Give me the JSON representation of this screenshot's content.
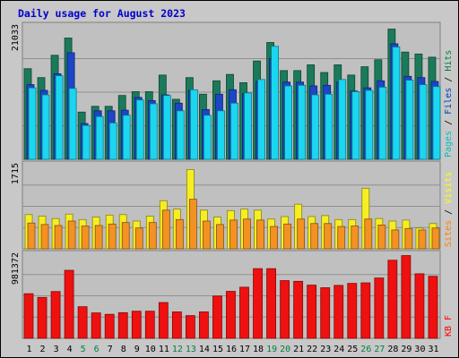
{
  "chart_data": {
    "type": "bar",
    "title": "Daily usage for August 2023",
    "categories": [
      "1",
      "2",
      "3",
      "4",
      "5",
      "6",
      "7",
      "8",
      "9",
      "10",
      "11",
      "12",
      "13",
      "14",
      "15",
      "16",
      "17",
      "18",
      "19",
      "20",
      "21",
      "22",
      "23",
      "24",
      "25",
      "26",
      "27",
      "28",
      "29",
      "30",
      "31"
    ],
    "weekend_days": [
      "5",
      "6",
      "12",
      "13",
      "19",
      "20",
      "26",
      "27"
    ],
    "panels": [
      {
        "id": "hits",
        "ymax": 21033,
        "ymax_label": "21033",
        "ylabel_parts": [
          "Pages",
          "Files",
          "Hits"
        ],
        "ylabel_colors": [
          "#00c0c0",
          "#0040c0",
          "#008040"
        ],
        "series": [
          {
            "name": "Hits",
            "color": "#1b7a5a",
            "values": [
              14200,
              12800,
              16300,
              19000,
              7400,
              8300,
              8300,
              10000,
              10600,
              10600,
              13200,
              9400,
              12800,
              10200,
              12300,
              13300,
              12000,
              15400,
              18300,
              13900,
              13900,
              14800,
              13600,
              14800,
              13200,
              14500,
              15600,
              20400,
              16800,
              16500,
              16000
            ]
          },
          {
            "name": "Files",
            "color": "#1c45c8",
            "values": [
              11700,
              10800,
              13400,
              16700,
              5600,
              7600,
              7600,
              7700,
              9700,
              9200,
              10100,
              8800,
              10800,
              7800,
              10200,
              10900,
              10300,
              12200,
              15800,
              12100,
              12100,
              11500,
              11600,
              12100,
              10700,
              11200,
              12300,
              18100,
              13000,
              12800,
              12200
            ]
          },
          {
            "name": "Pages",
            "color": "#1ad6f0",
            "values": [
              11200,
              10100,
              13100,
              11100,
              5300,
              6700,
              5700,
              6900,
              9300,
              8700,
              10000,
              7600,
              10900,
              6900,
              7600,
              8800,
              10400,
              12500,
              17700,
              11500,
              11600,
              10100,
              10200,
              12500,
              10600,
              10800,
              11300,
              17600,
              12400,
              11700,
              11400
            ]
          }
        ]
      },
      {
        "id": "visits",
        "ymax": 1715,
        "ymax_label": "1715",
        "ylabel_parts": [
          "Sites",
          "Visits"
        ],
        "ylabel_colors": [
          "#ff8000",
          "#ffff00"
        ],
        "series": [
          {
            "name": "Visits",
            "color": "#f6ee22",
            "values": [
              690,
              660,
              610,
              700,
              590,
              640,
              680,
              690,
              560,
              660,
              970,
              800,
              1600,
              780,
              640,
              770,
              800,
              780,
              600,
              650,
              900,
              650,
              670,
              590,
              590,
              1220,
              610,
              560,
              580,
              420,
              510
            ]
          },
          {
            "name": "Sites",
            "color": "#f39222",
            "values": [
              520,
              490,
              470,
              560,
              460,
              470,
              500,
              530,
              420,
              530,
              780,
              590,
              1000,
              560,
              490,
              580,
              600,
              580,
              450,
              500,
              600,
              510,
              510,
              450,
              460,
              600,
              480,
              380,
              410,
              380,
              420
            ]
          }
        ]
      },
      {
        "id": "kbytes",
        "ymax": 981372,
        "ymax_label": "981372",
        "ylabel_parts": [
          "KB F"
        ],
        "ylabel_colors": [
          "#ff0000"
        ],
        "series": [
          {
            "name": "KB F",
            "color": "#ef1010",
            "values": [
              515000,
              472000,
              540000,
              785000,
              365000,
              293000,
              277000,
              296000,
              313000,
              313000,
              413000,
              305000,
              262000,
              305000,
              488000,
              542000,
              590000,
              804000,
              804000,
              666000,
              658000,
              614000,
              584000,
              611000,
              634000,
              640000,
              696000,
              901000,
              955000,
              745000,
              716000
            ]
          }
        ]
      }
    ]
  }
}
